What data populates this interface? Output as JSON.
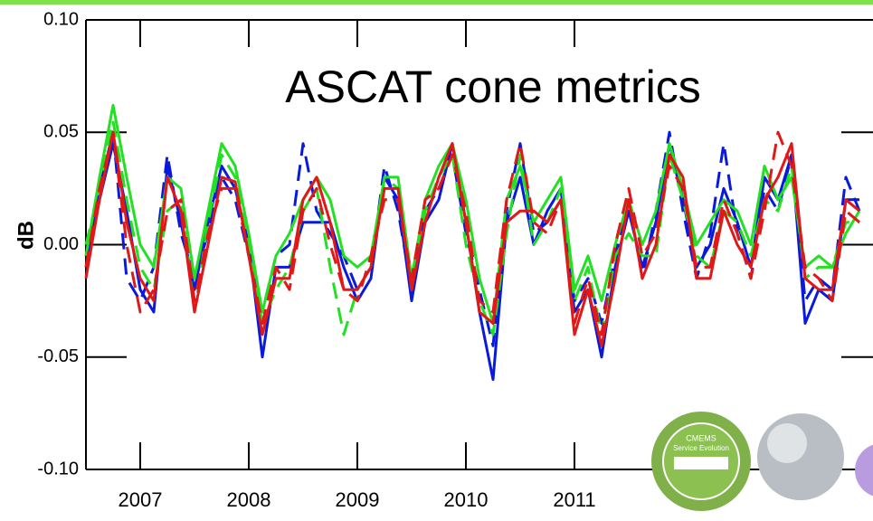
{
  "chart_data": {
    "type": "line",
    "title": "ASCAT cone metrics",
    "ylabel": "dB",
    "x": [
      2006.5,
      2006.625,
      2006.75,
      2006.875,
      2007,
      2007.125,
      2007.25,
      2007.375,
      2007.5,
      2007.625,
      2007.75,
      2007.875,
      2008,
      2008.125,
      2008.25,
      2008.375,
      2008.5,
      2008.625,
      2008.75,
      2008.875,
      2009,
      2009.125,
      2009.25,
      2009.375,
      2009.5,
      2009.625,
      2009.75,
      2009.875,
      2010,
      2010.125,
      2010.25,
      2010.375,
      2010.5,
      2010.625,
      2010.75,
      2010.875,
      2011,
      2011.125,
      2011.25,
      2011.375,
      2011.5,
      2011.625,
      2011.75,
      2011.875,
      2012,
      2012.125,
      2012.25,
      2012.375,
      2012.5,
      2012.625,
      2012.75,
      2012.875,
      2013,
      2013.125,
      2013.25,
      2013.375,
      2013.5,
      2013.625
    ],
    "series": [
      {
        "color": "#0a1adc",
        "line_style": "solid",
        "values": [
          -0.01,
          0.02,
          0.045,
          0.015,
          -0.02,
          -0.03,
          0.035,
          0.01,
          -0.02,
          0.01,
          0.035,
          0.025,
          0.0,
          -0.05,
          -0.01,
          -0.01,
          0.01,
          0.01,
          0.01,
          -0.01,
          -0.025,
          -0.015,
          0.03,
          0.02,
          -0.025,
          0.01,
          0.02,
          0.045,
          0.01,
          -0.03,
          -0.06,
          0.01,
          0.03,
          0.0,
          0.015,
          0.025,
          -0.03,
          -0.02,
          -0.05,
          -0.01,
          0.015,
          -0.01,
          0.01,
          0.045,
          0.02,
          -0.01,
          0.0,
          0.025,
          0.01,
          -0.01,
          0.03,
          0.02,
          0.04,
          -0.035,
          -0.02,
          -0.025,
          0.02,
          0.02
        ]
      },
      {
        "color": "#0a1adc",
        "line_style": "dashed",
        "values": [
          -0.005,
          0.025,
          0.05,
          -0.015,
          -0.025,
          -0.01,
          0.04,
          0.005,
          -0.015,
          0.005,
          0.03,
          0.02,
          -0.005,
          -0.03,
          -0.005,
          0.0,
          0.045,
          0.015,
          0.005,
          -0.005,
          -0.02,
          -0.01,
          0.035,
          0.015,
          -0.02,
          0.015,
          0.025,
          0.04,
          0.005,
          -0.02,
          -0.045,
          0.015,
          0.045,
          0.005,
          0.01,
          0.02,
          -0.025,
          -0.015,
          -0.035,
          -0.005,
          0.02,
          -0.015,
          0.015,
          0.05,
          0.015,
          -0.015,
          0.005,
          0.045,
          0.005,
          -0.015,
          0.025,
          0.015,
          0.04,
          -0.025,
          -0.015,
          -0.02,
          0.03,
          0.015
        ]
      },
      {
        "color": "#22e022",
        "line_style": "solid",
        "values": [
          -0.005,
          0.03,
          0.062,
          0.03,
          0.0,
          -0.01,
          0.03,
          0.025,
          -0.015,
          0.015,
          0.045,
          0.035,
          0.005,
          -0.03,
          -0.005,
          0.005,
          0.02,
          0.03,
          0.02,
          -0.005,
          -0.01,
          -0.005,
          0.03,
          0.03,
          -0.015,
          0.02,
          0.035,
          0.045,
          0.02,
          -0.015,
          -0.035,
          0.02,
          0.035,
          0.01,
          0.02,
          0.03,
          -0.02,
          -0.005,
          -0.025,
          0.0,
          0.02,
          0.0,
          0.015,
          0.045,
          0.025,
          0.0,
          0.01,
          0.02,
          0.015,
          0.0,
          0.035,
          0.02,
          0.03,
          -0.01,
          -0.005,
          -0.01,
          0.005,
          0.015
        ]
      },
      {
        "color": "#22e022",
        "line_style": "dashed",
        "values": [
          0.0,
          0.025,
          0.055,
          0.02,
          -0.01,
          -0.02,
          0.015,
          0.02,
          -0.03,
          0.01,
          0.04,
          0.03,
          0.0,
          -0.035,
          -0.02,
          -0.01,
          0.015,
          0.025,
          -0.01,
          -0.04,
          -0.02,
          -0.01,
          0.03,
          0.025,
          -0.02,
          0.015,
          0.03,
          0.04,
          0.0,
          -0.025,
          -0.04,
          0.005,
          0.04,
          0.0,
          0.01,
          0.025,
          -0.025,
          -0.01,
          -0.04,
          -0.005,
          0.005,
          -0.005,
          -0.005,
          0.04,
          0.02,
          -0.005,
          -0.01,
          0.015,
          0.01,
          -0.005,
          0.02,
          0.015,
          0.035,
          -0.015,
          -0.01,
          -0.01,
          0.01,
          0.01
        ]
      },
      {
        "color": "#e01818",
        "line_style": "solid",
        "values": [
          -0.015,
          0.02,
          0.05,
          0.01,
          -0.015,
          -0.025,
          0.03,
          0.015,
          -0.03,
          0.0,
          0.03,
          0.028,
          -0.005,
          -0.04,
          -0.015,
          -0.015,
          0.02,
          0.03,
          0.01,
          -0.02,
          -0.02,
          -0.01,
          0.025,
          0.025,
          -0.02,
          0.01,
          0.03,
          0.045,
          0.01,
          -0.03,
          -0.035,
          0.01,
          0.015,
          0.015,
          0.01,
          0.02,
          -0.04,
          -0.02,
          -0.045,
          -0.015,
          0.02,
          -0.015,
          0.0,
          0.04,
          0.03,
          -0.015,
          -0.015,
          0.015,
          0.0,
          -0.01,
          0.02,
          0.03,
          0.045,
          -0.015,
          -0.02,
          -0.02,
          0.02,
          0.015
        ]
      },
      {
        "color": "#e01818",
        "line_style": "dashed",
        "values": [
          -0.01,
          0.025,
          0.05,
          0.0,
          -0.03,
          -0.02,
          0.015,
          0.02,
          -0.025,
          0.005,
          0.025,
          0.025,
          -0.005,
          -0.035,
          -0.01,
          -0.02,
          0.015,
          0.025,
          0.0,
          -0.02,
          -0.025,
          -0.005,
          0.02,
          0.02,
          -0.015,
          0.02,
          0.025,
          0.04,
          0.015,
          -0.025,
          -0.03,
          0.02,
          0.045,
          0.01,
          0.005,
          0.02,
          -0.035,
          -0.015,
          -0.04,
          0.0,
          0.025,
          -0.005,
          0.005,
          0.035,
          0.025,
          -0.01,
          -0.01,
          0.02,
          0.005,
          -0.015,
          0.015,
          0.05,
          0.035,
          -0.01,
          -0.015,
          -0.025,
          0.015,
          0.01
        ]
      }
    ],
    "xlim": [
      2006.5,
      2013.75
    ],
    "xticks": [
      2007,
      2008,
      2009,
      2010,
      2011
    ],
    "ylim": [
      -0.1,
      0.1
    ],
    "yticks": [
      {
        "value": -0.1,
        "label": "-0.10"
      },
      {
        "value": -0.05,
        "label": "-0.05"
      },
      {
        "value": 0,
        "label": "0.00"
      },
      {
        "value": 0.05,
        "label": "0.05"
      },
      {
        "value": 0.1,
        "label": "0.10"
      }
    ]
  },
  "logo": {
    "name": "CMEMS",
    "subtitle": "Service Evolution"
  }
}
